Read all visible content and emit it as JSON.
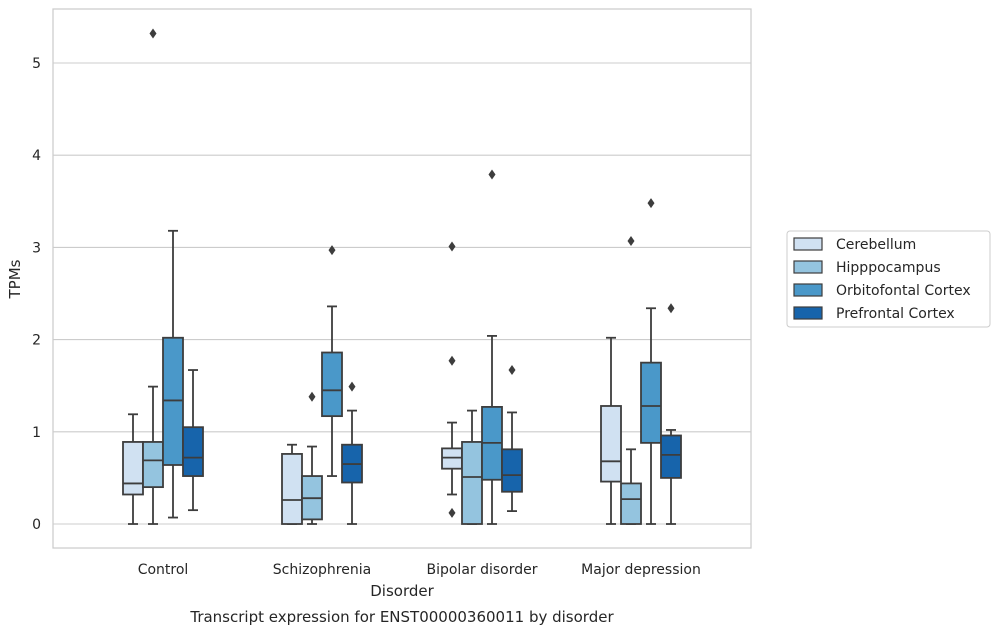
{
  "chart_data": {
    "type": "box",
    "title": "Transcript expression for ENST00000360011 by disorder",
    "xlabel": "Disorder",
    "ylabel": "TPMs",
    "ylim": [
      -0.26,
      5.6
    ],
    "yticks": [
      0,
      1,
      2,
      3,
      4,
      5
    ],
    "grid": "horizontal",
    "legend_position": "right, outside",
    "categories": [
      "Control",
      "Schizophrenia",
      "Bipolar disorder",
      "Major depression"
    ],
    "series": [
      {
        "name": "Cerebellum",
        "color": "#d0e1f2",
        "boxes": [
          {
            "whislo": 0.0,
            "q1": 0.32,
            "med": 0.44,
            "q3": 0.89,
            "whishi": 1.19,
            "fliers": []
          },
          {
            "whislo": 0.0,
            "q1": 0.0,
            "med": 0.26,
            "q3": 0.76,
            "whishi": 0.86,
            "fliers": []
          },
          {
            "whislo": 0.32,
            "q1": 0.6,
            "med": 0.72,
            "q3": 0.82,
            "whishi": 1.1,
            "fliers": [
              3.01,
              1.77,
              0.12
            ]
          },
          {
            "whislo": 0.0,
            "q1": 0.46,
            "med": 0.68,
            "q3": 1.28,
            "whishi": 2.02,
            "fliers": []
          }
        ]
      },
      {
        "name": "Hipppocampus",
        "color": "#94c4df",
        "boxes": [
          {
            "whislo": 0.0,
            "q1": 0.4,
            "med": 0.69,
            "q3": 0.89,
            "whishi": 1.49,
            "fliers": [
              5.32
            ]
          },
          {
            "whislo": 0.0,
            "q1": 0.05,
            "med": 0.28,
            "q3": 0.52,
            "whishi": 0.84,
            "fliers": [
              1.38
            ]
          },
          {
            "whislo": 0.0,
            "q1": 0.0,
            "med": 0.51,
            "q3": 0.89,
            "whishi": 1.23,
            "fliers": []
          },
          {
            "whislo": 0.0,
            "q1": 0.0,
            "med": 0.27,
            "q3": 0.44,
            "whishi": 0.81,
            "fliers": [
              3.07
            ]
          }
        ]
      },
      {
        "name": "Orbitofontal Cortex",
        "color": "#4a98c9",
        "boxes": [
          {
            "whislo": 0.07,
            "q1": 0.64,
            "med": 1.34,
            "q3": 2.02,
            "whishi": 3.18,
            "fliers": []
          },
          {
            "whislo": 0.52,
            "q1": 1.17,
            "med": 1.45,
            "q3": 1.86,
            "whishi": 2.36,
            "fliers": [
              2.97
            ]
          },
          {
            "whislo": 0.0,
            "q1": 0.48,
            "med": 0.88,
            "q3": 1.27,
            "whishi": 2.04,
            "fliers": [
              3.79
            ]
          },
          {
            "whislo": 0.0,
            "q1": 0.88,
            "med": 1.28,
            "q3": 1.75,
            "whishi": 2.34,
            "fliers": [
              3.48
            ]
          }
        ]
      },
      {
        "name": "Prefrontal Cortex",
        "color": "#1764ab",
        "boxes": [
          {
            "whislo": 0.15,
            "q1": 0.52,
            "med": 0.72,
            "q3": 1.05,
            "whishi": 1.67,
            "fliers": []
          },
          {
            "whislo": 0.0,
            "q1": 0.45,
            "med": 0.65,
            "q3": 0.86,
            "whishi": 1.23,
            "fliers": [
              1.49
            ]
          },
          {
            "whislo": 0.14,
            "q1": 0.35,
            "med": 0.53,
            "q3": 0.81,
            "whishi": 1.21,
            "fliers": [
              1.67
            ]
          },
          {
            "whislo": 0.0,
            "q1": 0.5,
            "med": 0.75,
            "q3": 0.96,
            "whishi": 1.02,
            "fliers": [
              2.34
            ]
          }
        ]
      }
    ]
  }
}
